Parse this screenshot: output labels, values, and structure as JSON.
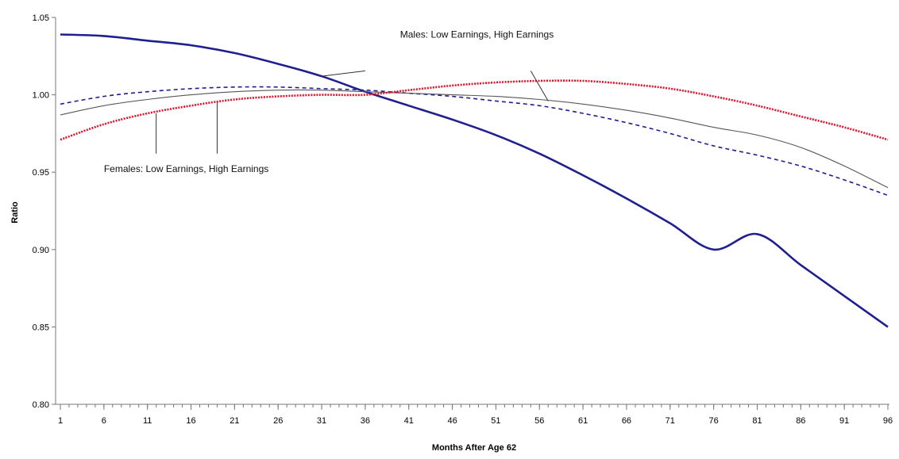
{
  "chart_data": {
    "type": "line",
    "title": "",
    "xlabel": "Months After Age 62",
    "ylabel": "Ratio",
    "xlim": [
      1,
      96
    ],
    "ylim": [
      0.8,
      1.05
    ],
    "x_ticks": [
      1,
      6,
      11,
      16,
      21,
      26,
      31,
      36,
      41,
      46,
      51,
      56,
      61,
      66,
      71,
      76,
      81,
      86,
      91,
      96
    ],
    "y_ticks": [
      0.8,
      0.85,
      0.9,
      0.95,
      1.0,
      1.05
    ],
    "y_tick_labels": [
      "0.80",
      "0.85",
      "0.90",
      "0.95",
      "1.00",
      "1.05"
    ],
    "grid": false,
    "legend": "none",
    "colors": {
      "navy": "#1f1f8f",
      "red": "#e8102a",
      "gray": "#555555"
    },
    "series": [
      {
        "style": "navy-solid-thick",
        "x": [
          1,
          6,
          11,
          16,
          21,
          26,
          31,
          36,
          41,
          46,
          51,
          56,
          61,
          66,
          71,
          76,
          81,
          86,
          91,
          96
        ],
        "values": [
          1.039,
          1.038,
          1.035,
          1.032,
          1.027,
          1.02,
          1.012,
          1.002,
          0.993,
          0.984,
          0.974,
          0.962,
          0.948,
          0.933,
          0.917,
          0.9,
          0.91,
          0.89,
          0.87,
          0.85
        ]
      },
      {
        "style": "navy-dashed",
        "x": [
          1,
          6,
          11,
          16,
          21,
          26,
          31,
          36,
          41,
          46,
          51,
          56,
          61,
          66,
          71,
          76,
          81,
          86,
          91,
          96
        ],
        "values": [
          0.994,
          0.999,
          1.002,
          1.004,
          1.005,
          1.005,
          1.004,
          1.003,
          1.001,
          0.999,
          0.996,
          0.993,
          0.988,
          0.982,
          0.975,
          0.967,
          0.961,
          0.954,
          0.945,
          0.935
        ]
      },
      {
        "style": "gray-solid-thin",
        "x": [
          1,
          6,
          11,
          16,
          21,
          26,
          31,
          36,
          41,
          46,
          51,
          56,
          61,
          66,
          71,
          76,
          81,
          86,
          91,
          96
        ],
        "values": [
          0.987,
          0.993,
          0.997,
          1.0,
          1.002,
          1.003,
          1.003,
          1.002,
          1.001,
          1.0,
          0.999,
          0.997,
          0.994,
          0.99,
          0.985,
          0.979,
          0.974,
          0.966,
          0.954,
          0.94
        ]
      },
      {
        "style": "red-dotted-thick",
        "x": [
          1,
          6,
          11,
          16,
          21,
          26,
          31,
          36,
          41,
          46,
          51,
          56,
          61,
          66,
          71,
          76,
          81,
          86,
          91,
          96
        ],
        "values": [
          0.971,
          0.981,
          0.988,
          0.993,
          0.997,
          0.999,
          1.0,
          1.0,
          1.003,
          1.006,
          1.008,
          1.009,
          1.009,
          1.007,
          1.004,
          0.999,
          0.993,
          0.986,
          0.979,
          0.971
        ]
      }
    ],
    "annotations": [
      {
        "name": "males",
        "text": "Males: Low Earnings, High Earnings",
        "x": 40,
        "y": 1.037,
        "pointers": [
          {
            "from": [
              36,
              1.0155
            ],
            "to": [
              31,
              1.012
            ]
          },
          {
            "from": [
              55,
              1.0155
            ],
            "to": [
              57,
              0.996
            ]
          }
        ]
      },
      {
        "name": "females",
        "text": "Females: Low Earnings, High Earnings",
        "x": 6,
        "y": 0.95,
        "pointers": [
          {
            "from": [
              12,
              0.962
            ],
            "to": [
              12,
              0.988
            ]
          },
          {
            "from": [
              19,
              0.962
            ],
            "to": [
              19,
              0.995
            ]
          }
        ]
      }
    ]
  }
}
